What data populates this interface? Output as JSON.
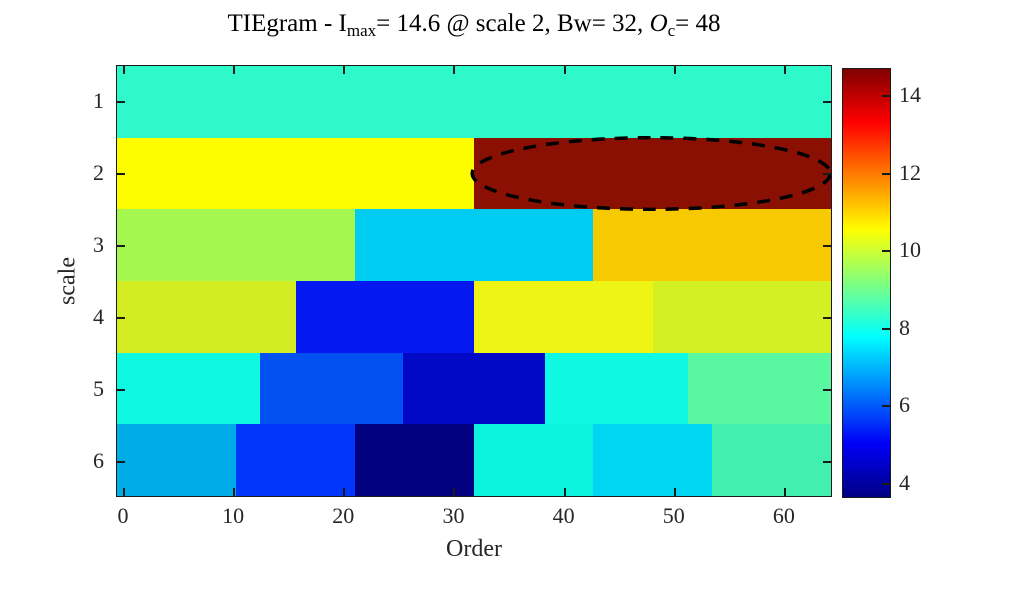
{
  "title": {
    "part1": "TIEgram - I",
    "sub1": "max",
    "part2": "= 14.6 @ scale 2, Bw= 32, ",
    "part3": "O",
    "sub2": "c",
    "part4": "= 48"
  },
  "axes": {
    "xlabel": "Order",
    "ylabel": "scale",
    "x_ticks": [
      0,
      10,
      20,
      30,
      40,
      50,
      60
    ],
    "y_ticks": [
      1,
      2,
      3,
      4,
      5,
      6
    ]
  },
  "chart_data": {
    "type": "heatmap",
    "title": "TIEgram - I_max= 14.6 @ scale 2, Bw= 32, O_c= 48",
    "xlabel": "Order",
    "ylabel": "scale",
    "xlim": [
      0,
      65
    ],
    "ylim": [
      1,
      6
    ],
    "max_value": 14.6,
    "max_location": {
      "scale": 2,
      "order_center": 48,
      "block_width": 32
    },
    "rows": [
      {
        "scale": 1,
        "cells": [
          {
            "x_range": [
              0,
              65
            ],
            "value": 8.3,
            "color": "#2ef9cb"
          }
        ]
      },
      {
        "scale": 2,
        "cells": [
          {
            "x_range": [
              0,
              32.5
            ],
            "value": 10.5,
            "color": "#fdfd00"
          },
          {
            "x_range": [
              32.5,
              65
            ],
            "value": 14.6,
            "color": "#8b1004"
          }
        ]
      },
      {
        "scale": 3,
        "cells": [
          {
            "x_range": [
              0,
              21.7
            ],
            "value": 9.6,
            "color": "#a4f74e"
          },
          {
            "x_range": [
              21.7,
              43.3
            ],
            "value": 7.2,
            "color": "#00ccf2"
          },
          {
            "x_range": [
              43.3,
              65
            ],
            "value": 11.1,
            "color": "#f7c900"
          }
        ]
      },
      {
        "scale": 4,
        "cells": [
          {
            "x_range": [
              0,
              16.3
            ],
            "value": 10.1,
            "color": "#d4ec22"
          },
          {
            "x_range": [
              16.3,
              32.5
            ],
            "value": 5.1,
            "color": "#0418f2"
          },
          {
            "x_range": [
              32.5,
              48.8
            ],
            "value": 10.4,
            "color": "#eef414"
          },
          {
            "x_range": [
              48.8,
              65
            ],
            "value": 10.1,
            "color": "#d3f025"
          }
        ]
      },
      {
        "scale": 5,
        "cells": [
          {
            "x_range": [
              0,
              13
            ],
            "value": 8.0,
            "color": "#0ef8e2"
          },
          {
            "x_range": [
              13,
              26
            ],
            "value": 5.9,
            "color": "#0350f0"
          },
          {
            "x_range": [
              26,
              39
            ],
            "value": 4.4,
            "color": "#0209c6"
          },
          {
            "x_range": [
              39,
              52
            ],
            "value": 8.0,
            "color": "#0ef8e2"
          },
          {
            "x_range": [
              52,
              65
            ],
            "value": 8.8,
            "color": "#59f79f"
          }
        ]
      },
      {
        "scale": 6,
        "cells": [
          {
            "x_range": [
              0,
              10.8
            ],
            "value": 6.9,
            "color": "#00ace8"
          },
          {
            "x_range": [
              10.8,
              21.7
            ],
            "value": 5.5,
            "color": "#0136fb"
          },
          {
            "x_range": [
              21.7,
              32.5
            ],
            "value": 3.7,
            "color": "#010080"
          },
          {
            "x_range": [
              32.5,
              43.3
            ],
            "value": 8.0,
            "color": "#0df2dc"
          },
          {
            "x_range": [
              43.3,
              54.2
            ],
            "value": 7.3,
            "color": "#00d5f2"
          },
          {
            "x_range": [
              54.2,
              65
            ],
            "value": 8.6,
            "color": "#41f0ae"
          }
        ]
      }
    ],
    "annotation": {
      "type": "dashed-ellipse",
      "color": "#000000",
      "order_center": 48,
      "order_radius": 16.3,
      "scale_center": 2,
      "scale_radius": 0.49
    },
    "colorbar": {
      "colormap": "jet",
      "min": 3.6,
      "max": 14.7,
      "ticks": [
        4,
        6,
        8,
        10,
        12,
        14
      ],
      "position": "right"
    },
    "grid": false,
    "legend": false
  }
}
